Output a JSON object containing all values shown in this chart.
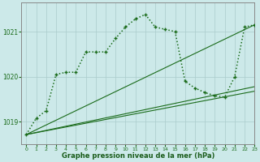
{
  "bg_color": "#cce9e9",
  "grid_color": "#aacccc",
  "line_color": "#1a6b1a",
  "xlabel": "Graphe pression niveau de la mer (hPa)",
  "xlim": [
    -0.5,
    23
  ],
  "ylim": [
    1018.5,
    1021.65
  ],
  "yticks": [
    1019,
    1020,
    1021
  ],
  "xticks": [
    0,
    1,
    2,
    3,
    4,
    5,
    6,
    7,
    8,
    9,
    10,
    11,
    12,
    13,
    14,
    15,
    16,
    17,
    18,
    19,
    20,
    21,
    22,
    23
  ],
  "series": [
    {
      "x": [
        0,
        23
      ],
      "y": [
        1018.72,
        1021.15
      ],
      "marker": null,
      "ls": "-",
      "lw": 0.8
    },
    {
      "x": [
        0,
        23
      ],
      "y": [
        1018.72,
        1019.78
      ],
      "marker": null,
      "ls": "-",
      "lw": 0.8
    },
    {
      "x": [
        0,
        23
      ],
      "y": [
        1018.72,
        1019.68
      ],
      "marker": null,
      "ls": "-",
      "lw": 0.8
    },
    {
      "x": [
        0,
        1,
        2,
        3,
        4,
        5,
        6,
        7,
        8,
        9,
        10,
        11,
        12,
        13,
        14,
        15,
        16,
        17,
        18,
        19,
        20,
        21,
        22,
        23
      ],
      "y": [
        1018.72,
        1019.08,
        1019.25,
        1020.05,
        1020.1,
        1020.1,
        1020.55,
        1020.55,
        1020.55,
        1020.85,
        1021.1,
        1021.28,
        1021.38,
        1021.1,
        1021.05,
        1021.0,
        1019.9,
        1019.75,
        1019.65,
        1019.58,
        1019.55,
        1020.0,
        1021.1,
        1021.15
      ],
      "marker": "+",
      "ls": ":",
      "lw": 1.1
    }
  ]
}
